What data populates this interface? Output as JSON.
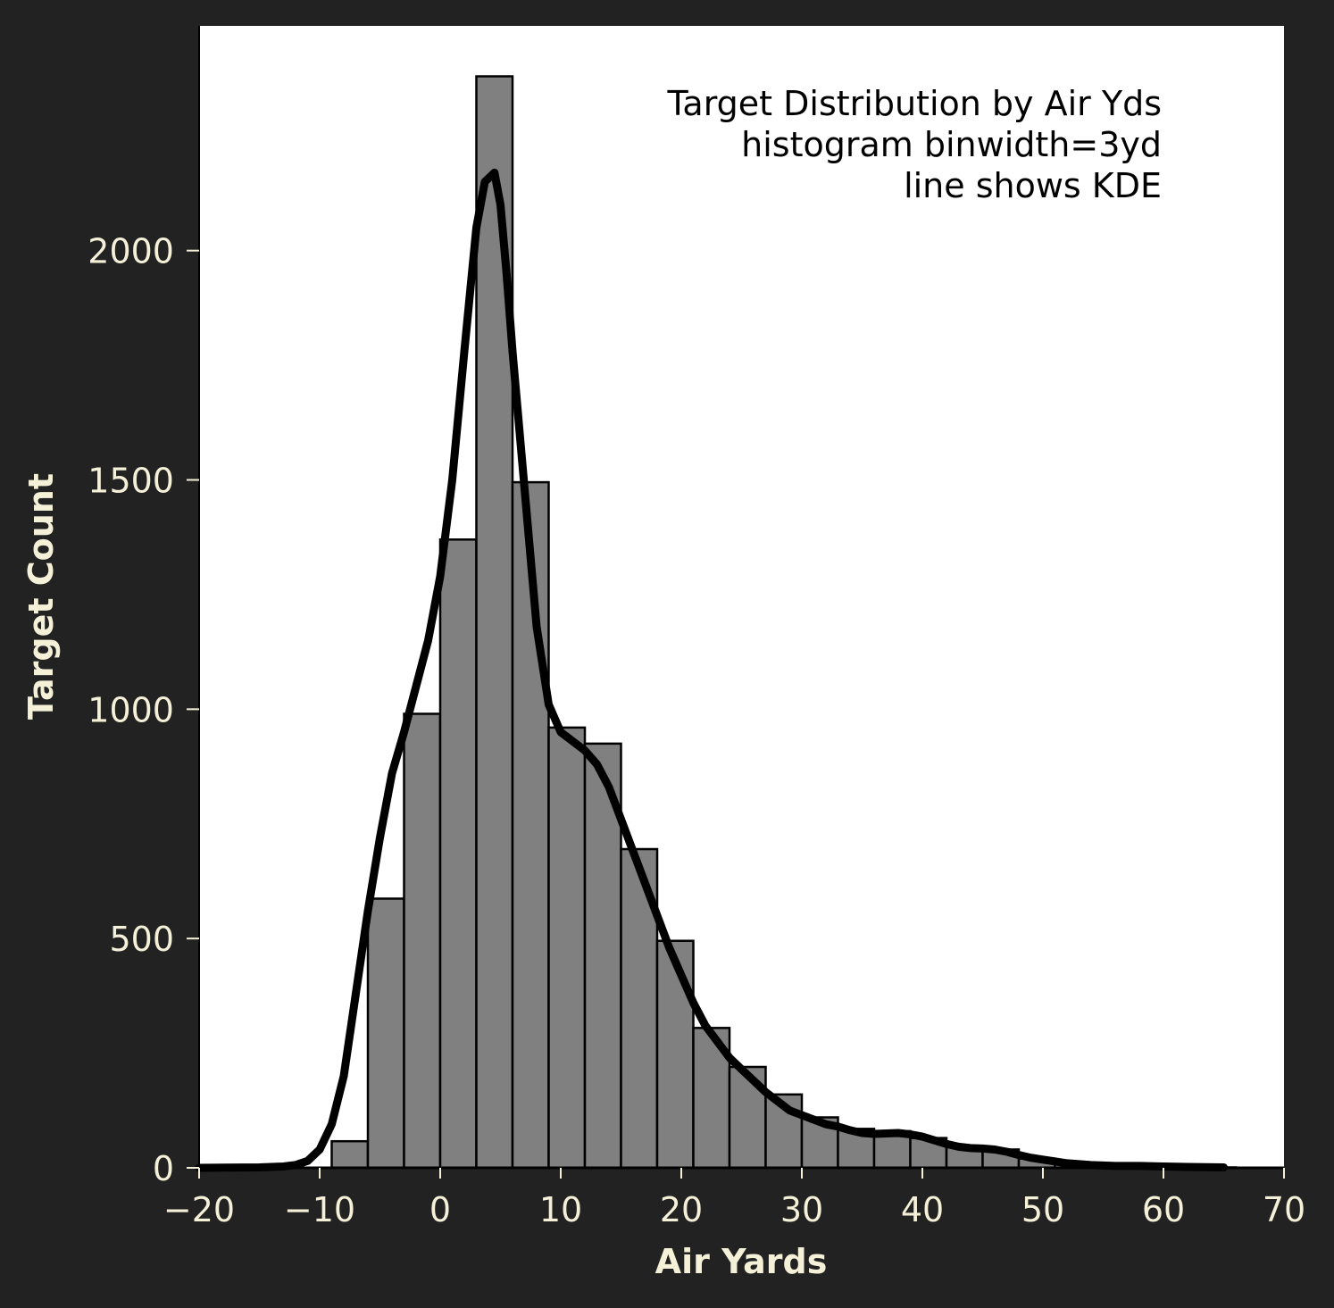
{
  "chart_data": {
    "type": "bar",
    "title": "",
    "xlabel": "Air Yards",
    "ylabel": "Target Count",
    "xlim": [
      -20,
      70
    ],
    "ylim": [
      0,
      2490
    ],
    "xticks": [
      -20,
      -10,
      0,
      10,
      20,
      30,
      40,
      50,
      60,
      70
    ],
    "xtick_labels": [
      "−20",
      "−10",
      "0",
      "10",
      "20",
      "30",
      "40",
      "50",
      "60",
      "70"
    ],
    "yticks": [
      0,
      500,
      1000,
      1500,
      2000
    ],
    "ytick_labels": [
      "0",
      "500",
      "1000",
      "1500",
      "2000"
    ],
    "grid": false,
    "annotation_lines": [
      "Target Distribution by Air Yds",
      "histogram binwidth=3yd",
      "line shows KDE"
    ],
    "bin_width": 3,
    "bins": [
      {
        "start": -9,
        "end": -6,
        "count": 58
      },
      {
        "start": -6,
        "end": -3,
        "count": 587
      },
      {
        "start": -3,
        "end": 0,
        "count": 990
      },
      {
        "start": 0,
        "end": 3,
        "count": 1370
      },
      {
        "start": 3,
        "end": 6,
        "count": 2380
      },
      {
        "start": 6,
        "end": 9,
        "count": 1495
      },
      {
        "start": 9,
        "end": 12,
        "count": 960
      },
      {
        "start": 12,
        "end": 15,
        "count": 925
      },
      {
        "start": 15,
        "end": 18,
        "count": 695
      },
      {
        "start": 18,
        "end": 21,
        "count": 495
      },
      {
        "start": 21,
        "end": 24,
        "count": 305
      },
      {
        "start": 24,
        "end": 27,
        "count": 220
      },
      {
        "start": 27,
        "end": 30,
        "count": 160
      },
      {
        "start": 30,
        "end": 33,
        "count": 110
      },
      {
        "start": 33,
        "end": 36,
        "count": 85
      },
      {
        "start": 36,
        "end": 39,
        "count": 80
      },
      {
        "start": 39,
        "end": 42,
        "count": 65
      },
      {
        "start": 42,
        "end": 45,
        "count": 45
      },
      {
        "start": 45,
        "end": 48,
        "count": 40
      },
      {
        "start": 48,
        "end": 51,
        "count": 20
      },
      {
        "start": 51,
        "end": 54,
        "count": 10
      },
      {
        "start": 54,
        "end": 57,
        "count": 5
      },
      {
        "start": 57,
        "end": 60,
        "count": 3
      },
      {
        "start": 60,
        "end": 63,
        "count": 2
      },
      {
        "start": 63,
        "end": 66,
        "count": 1
      }
    ],
    "kde": {
      "x": [
        -20,
        -15,
        -13,
        -12,
        -11,
        -10,
        -9,
        -8,
        -7,
        -6,
        -5,
        -4,
        -3,
        -2,
        -1,
        0,
        1,
        2,
        3,
        3.7,
        4.5,
        5,
        5.5,
        6,
        7,
        8,
        9,
        10,
        11,
        12,
        13,
        14,
        15,
        16,
        17,
        18,
        19,
        20,
        21,
        22,
        23,
        24,
        25,
        26,
        27,
        28,
        29,
        30,
        31,
        32,
        33,
        34,
        35,
        36,
        37,
        38,
        39,
        40,
        41,
        42,
        43,
        44,
        45,
        46,
        47,
        48,
        49,
        50,
        51,
        52,
        53,
        54,
        55,
        56,
        58,
        60,
        62,
        65
      ],
      "y": [
        0,
        1,
        3,
        6,
        15,
        40,
        95,
        200,
        380,
        560,
        720,
        860,
        950,
        1050,
        1150,
        1290,
        1500,
        1780,
        2050,
        2150,
        2170,
        2100,
        1950,
        1780,
        1480,
        1180,
        1010,
        950,
        930,
        910,
        880,
        830,
        760,
        690,
        620,
        550,
        480,
        420,
        360,
        310,
        275,
        240,
        215,
        190,
        165,
        145,
        125,
        115,
        105,
        95,
        90,
        82,
        76,
        74,
        75,
        76,
        73,
        68,
        60,
        52,
        46,
        43,
        42,
        40,
        35,
        28,
        22,
        18,
        14,
        10,
        8,
        6,
        5,
        4,
        4,
        3,
        2,
        1
      ]
    }
  }
}
